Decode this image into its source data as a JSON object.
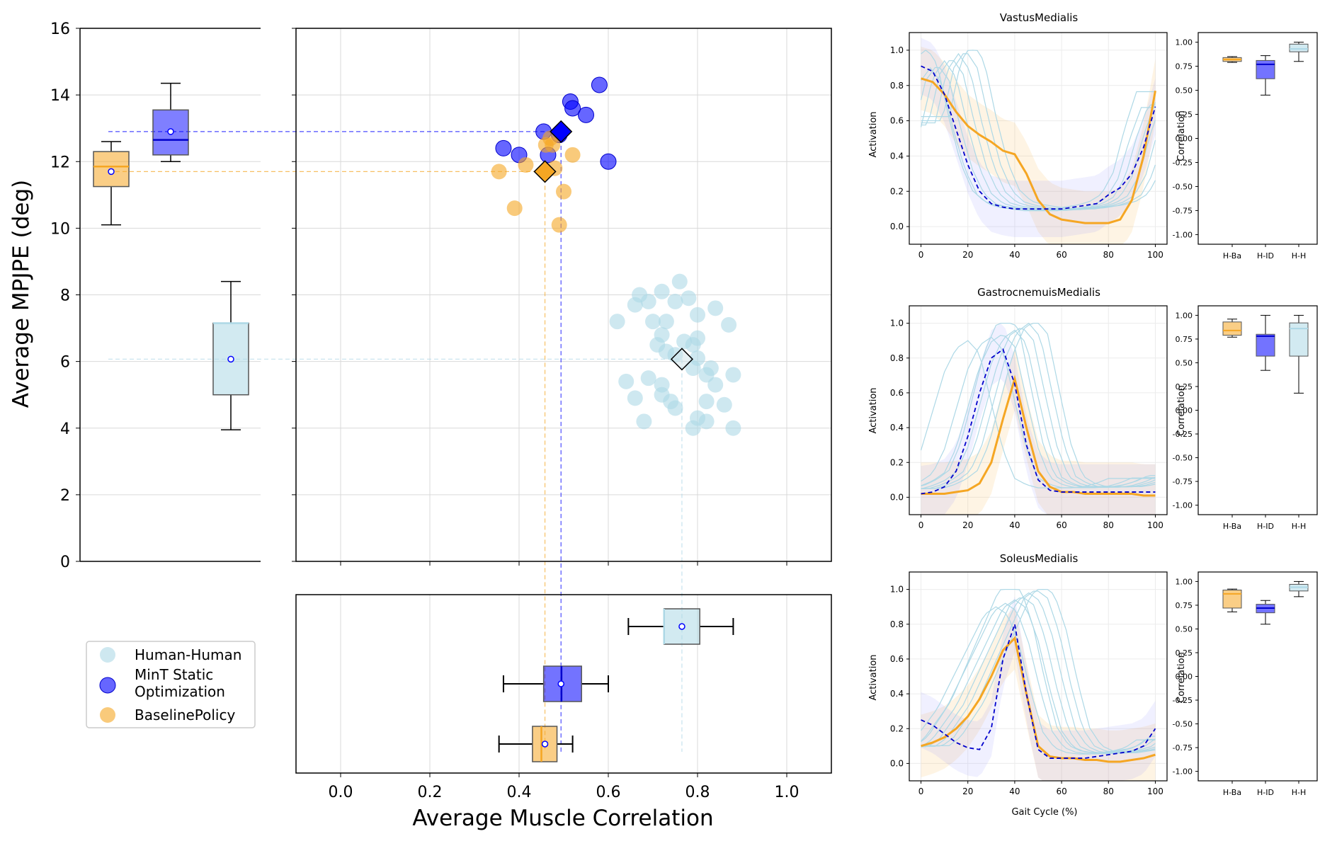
{
  "colors": {
    "human": "#add8e6",
    "mint": "#0000ff",
    "baseline": "#f5a623",
    "grid": "#d9d9d9"
  },
  "legend": {
    "items": [
      {
        "label": "Human-Human",
        "key": "human"
      },
      {
        "label": "MinT Static",
        "label2": "Optimization",
        "key": "mint"
      },
      {
        "label": "BaselinePolicy",
        "key": "baseline"
      }
    ]
  },
  "chart_data": [
    {
      "id": "main-scatter",
      "type": "scatter",
      "title": "",
      "xlabel": "Average Muscle Correlation",
      "ylabel": "Average MPJPE (deg)",
      "xlim": [
        -0.1,
        1.1
      ],
      "ylim": [
        0,
        16
      ],
      "xticks": [
        "0.0",
        "0.2",
        "0.4",
        "0.6",
        "0.8",
        "1.0"
      ],
      "yticks": [
        "0",
        "2",
        "4",
        "6",
        "8",
        "10",
        "12",
        "14",
        "16"
      ],
      "series": [
        {
          "name": "Human-Human",
          "key": "human",
          "mean": [
            0.765,
            6.07
          ],
          "points": [
            [
              0.76,
              8.4
            ],
            [
              0.72,
              8.1
            ],
            [
              0.67,
              8.0
            ],
            [
              0.69,
              7.8
            ],
            [
              0.66,
              7.7
            ],
            [
              0.75,
              7.8
            ],
            [
              0.78,
              7.9
            ],
            [
              0.8,
              7.4
            ],
            [
              0.84,
              7.6
            ],
            [
              0.7,
              7.2
            ],
            [
              0.62,
              7.2
            ],
            [
              0.73,
              7.2
            ],
            [
              0.87,
              7.1
            ],
            [
              0.72,
              6.8
            ],
            [
              0.71,
              6.5
            ],
            [
              0.73,
              6.3
            ],
            [
              0.77,
              6.6
            ],
            [
              0.79,
              6.5
            ],
            [
              0.8,
              6.7
            ],
            [
              0.75,
              6.2
            ],
            [
              0.8,
              6.1
            ],
            [
              0.79,
              5.8
            ],
            [
              0.83,
              5.8
            ],
            [
              0.82,
              5.6
            ],
            [
              0.88,
              5.6
            ],
            [
              0.64,
              5.4
            ],
            [
              0.72,
              5.3
            ],
            [
              0.84,
              5.3
            ],
            [
              0.69,
              5.5
            ],
            [
              0.72,
              5.0
            ],
            [
              0.74,
              4.8
            ],
            [
              0.66,
              4.9
            ],
            [
              0.75,
              4.6
            ],
            [
              0.82,
              4.8
            ],
            [
              0.86,
              4.7
            ],
            [
              0.68,
              4.2
            ],
            [
              0.8,
              4.3
            ],
            [
              0.82,
              4.2
            ],
            [
              0.79,
              4.0
            ],
            [
              0.88,
              4.0
            ]
          ]
        },
        {
          "name": "MinT Static Optimization",
          "key": "mint",
          "mean": [
            0.494,
            12.9
          ],
          "points": [
            [
              0.365,
              12.4
            ],
            [
              0.4,
              12.2
            ],
            [
              0.455,
              12.9
            ],
            [
              0.465,
              12.2
            ],
            [
              0.49,
              12.8
            ],
            [
              0.515,
              13.8
            ],
            [
              0.52,
              13.6
            ],
            [
              0.55,
              13.4
            ],
            [
              0.58,
              14.3
            ],
            [
              0.6,
              12.0
            ]
          ]
        },
        {
          "name": "BaselinePolicy",
          "key": "baseline",
          "mean": [
            0.458,
            11.7
          ],
          "points": [
            [
              0.355,
              11.7
            ],
            [
              0.39,
              10.6
            ],
            [
              0.415,
              11.9
            ],
            [
              0.46,
              12.5
            ],
            [
              0.47,
              12.7
            ],
            [
              0.475,
              12.5
            ],
            [
              0.49,
              10.1
            ],
            [
              0.5,
              11.1
            ],
            [
              0.52,
              12.2
            ],
            [
              0.48,
              11.8
            ]
          ]
        }
      ]
    },
    {
      "id": "mpjpe-boxplot",
      "type": "box",
      "ylim": [
        0,
        16
      ],
      "boxes": [
        {
          "key": "baseline",
          "min": 10.1,
          "q1": 11.25,
          "median": 11.85,
          "q3": 12.3,
          "max": 12.6,
          "mean": 11.7
        },
        {
          "key": "mint",
          "min": 12.0,
          "q1": 12.2,
          "median": 12.65,
          "q3": 13.55,
          "max": 14.35,
          "mean": 12.9
        },
        {
          "key": "human",
          "min": 3.95,
          "q1": 5.0,
          "median": 7.15,
          "q3": 7.15,
          "max": 8.4,
          "mean": 6.07
        }
      ]
    },
    {
      "id": "correlation-boxplot",
      "type": "box",
      "xlim": [
        -0.1,
        1.1
      ],
      "boxes": [
        {
          "key": "human",
          "min": 0.645,
          "q1": 0.725,
          "median": 0.725,
          "q3": 0.805,
          "max": 0.88,
          "mean": 0.765
        },
        {
          "key": "mint",
          "min": 0.365,
          "q1": 0.455,
          "median": 0.495,
          "q3": 0.54,
          "max": 0.6,
          "mean": 0.494
        },
        {
          "key": "baseline",
          "min": 0.355,
          "q1": 0.43,
          "median": 0.45,
          "q3": 0.485,
          "max": 0.52,
          "mean": 0.458
        }
      ]
    },
    {
      "id": "vastus",
      "type": "line",
      "title": "VastusMedialis",
      "xlabel": "",
      "ylabel": "Activation",
      "xlim": [
        -5,
        105
      ],
      "ylim": [
        -0.1,
        1.1
      ],
      "xticks": [
        "0",
        "20",
        "40",
        "60",
        "80",
        "100"
      ],
      "yticks": [
        "0.0",
        "0.2",
        "0.4",
        "0.6",
        "0.8",
        "1.0"
      ],
      "x": [
        0,
        5,
        10,
        15,
        20,
        25,
        30,
        35,
        40,
        45,
        50,
        55,
        60,
        65,
        70,
        75,
        80,
        85,
        90,
        95,
        100
      ],
      "baseline": [
        0.84,
        0.82,
        0.75,
        0.65,
        0.57,
        0.52,
        0.48,
        0.43,
        0.41,
        0.3,
        0.15,
        0.07,
        0.04,
        0.03,
        0.02,
        0.02,
        0.02,
        0.04,
        0.15,
        0.4,
        0.77
      ],
      "mint": [
        0.91,
        0.88,
        0.75,
        0.55,
        0.35,
        0.2,
        0.13,
        0.11,
        0.1,
        0.1,
        0.1,
        0.1,
        0.1,
        0.11,
        0.12,
        0.13,
        0.18,
        0.22,
        0.3,
        0.45,
        0.68
      ],
      "human_mean": [
        0.6,
        0.9,
        1.0,
        0.9,
        0.6,
        0.35,
        0.2,
        0.14,
        0.12,
        0.11,
        0.1,
        0.1,
        0.1,
        0.1,
        0.11,
        0.12,
        0.14,
        0.18,
        0.3,
        0.55,
        0.75
      ],
      "human_shift": [
        -6,
        -3,
        0,
        3,
        6,
        9,
        -8,
        12
      ]
    },
    {
      "id": "gastroc",
      "type": "line",
      "title": "GastrocnemuisMedialis",
      "xlabel": "",
      "ylabel": "Activation",
      "xlim": [
        -5,
        105
      ],
      "ylim": [
        -0.1,
        1.1
      ],
      "xticks": [
        "0",
        "20",
        "40",
        "60",
        "80",
        "100"
      ],
      "yticks": [
        "0.0",
        "0.2",
        "0.4",
        "0.6",
        "0.8",
        "1.0"
      ],
      "x": [
        0,
        5,
        10,
        15,
        20,
        25,
        30,
        35,
        40,
        45,
        50,
        55,
        60,
        65,
        70,
        75,
        80,
        85,
        90,
        95,
        100
      ],
      "baseline": [
        0.02,
        0.02,
        0.02,
        0.03,
        0.04,
        0.08,
        0.2,
        0.45,
        0.68,
        0.4,
        0.15,
        0.06,
        0.03,
        0.03,
        0.02,
        0.02,
        0.02,
        0.02,
        0.02,
        0.01,
        0.01
      ],
      "mint": [
        0.02,
        0.03,
        0.06,
        0.15,
        0.35,
        0.6,
        0.8,
        0.85,
        0.65,
        0.3,
        0.1,
        0.04,
        0.03,
        0.03,
        0.03,
        0.03,
        0.03,
        0.03,
        0.03,
        0.03,
        0.03
      ],
      "human_mean": [
        0.05,
        0.07,
        0.1,
        0.15,
        0.3,
        0.55,
        0.8,
        0.95,
        1.0,
        0.92,
        0.6,
        0.3,
        0.12,
        0.08,
        0.06,
        0.06,
        0.06,
        0.06,
        0.07,
        0.09,
        0.12
      ],
      "human_shift": [
        -20,
        -10,
        -5,
        0,
        3,
        6,
        9,
        -3
      ]
    },
    {
      "id": "soleus",
      "type": "line",
      "title": "SoleusMedialis",
      "xlabel": "Gait Cycle (%)",
      "ylabel": "Activation",
      "xlim": [
        -5,
        105
      ],
      "ylim": [
        -0.1,
        1.1
      ],
      "xticks": [
        "0",
        "20",
        "40",
        "60",
        "80",
        "100"
      ],
      "yticks": [
        "0.0",
        "0.2",
        "0.4",
        "0.6",
        "0.8",
        "1.0"
      ],
      "x": [
        0,
        5,
        10,
        15,
        20,
        25,
        30,
        35,
        40,
        45,
        50,
        55,
        60,
        65,
        70,
        75,
        80,
        85,
        90,
        95,
        100
      ],
      "baseline": [
        0.1,
        0.12,
        0.15,
        0.2,
        0.27,
        0.37,
        0.5,
        0.65,
        0.72,
        0.4,
        0.1,
        0.04,
        0.03,
        0.03,
        0.02,
        0.02,
        0.01,
        0.01,
        0.02,
        0.03,
        0.05
      ],
      "mint": [
        0.25,
        0.22,
        0.17,
        0.12,
        0.09,
        0.08,
        0.2,
        0.6,
        0.8,
        0.4,
        0.08,
        0.03,
        0.03,
        0.03,
        0.03,
        0.04,
        0.05,
        0.06,
        0.07,
        0.1,
        0.2
      ],
      "human_mean": [
        0.1,
        0.15,
        0.25,
        0.35,
        0.5,
        0.65,
        0.8,
        0.95,
        1.0,
        0.95,
        0.75,
        0.45,
        0.2,
        0.1,
        0.07,
        0.06,
        0.06,
        0.07,
        0.08,
        0.1,
        0.15
      ],
      "human_shift": [
        -8,
        -4,
        0,
        3,
        6,
        9,
        12,
        -2
      ]
    },
    {
      "id": "vastus-box",
      "type": "box",
      "ylabel": "Correlation",
      "ylim": [
        -1.1,
        1.1
      ],
      "yticks": [
        "-1.00",
        "-0.75",
        "-0.50",
        "-0.25",
        "0.00",
        "0.25",
        "0.50",
        "0.75",
        "1.00"
      ],
      "categories": [
        "H-Ba",
        "H-ID",
        "H-H"
      ],
      "boxes": [
        {
          "key": "baseline",
          "min": 0.79,
          "q1": 0.8,
          "median": 0.82,
          "q3": 0.84,
          "max": 0.85
        },
        {
          "key": "mint",
          "min": 0.45,
          "q1": 0.62,
          "median": 0.77,
          "q3": 0.81,
          "max": 0.86
        },
        {
          "key": "human",
          "min": 0.8,
          "q1": 0.9,
          "median": 0.93,
          "q3": 0.98,
          "max": 1.0
        }
      ]
    },
    {
      "id": "gastroc-box",
      "type": "box",
      "ylabel": "Correlation",
      "ylim": [
        -1.1,
        1.1
      ],
      "yticks": [
        "-1.00",
        "-0.75",
        "-0.50",
        "-0.25",
        "0.00",
        "0.25",
        "0.50",
        "0.75",
        "1.00"
      ],
      "categories": [
        "H-Ba",
        "H-ID",
        "H-H"
      ],
      "boxes": [
        {
          "key": "baseline",
          "min": 0.77,
          "q1": 0.79,
          "median": 0.84,
          "q3": 0.93,
          "max": 0.96
        },
        {
          "key": "mint",
          "min": 0.42,
          "q1": 0.57,
          "median": 0.78,
          "q3": 0.8,
          "max": 1.0
        },
        {
          "key": "human",
          "min": 0.18,
          "q1": 0.57,
          "median": 0.86,
          "q3": 0.92,
          "max": 1.0
        }
      ]
    },
    {
      "id": "soleus-box",
      "type": "box",
      "ylabel": "Correlation",
      "ylim": [
        -1.1,
        1.1
      ],
      "yticks": [
        "-1.00",
        "-0.75",
        "-0.50",
        "-0.25",
        "0.00",
        "0.25",
        "0.50",
        "0.75",
        "1.00"
      ],
      "categories": [
        "H-Ba",
        "H-ID",
        "H-H"
      ],
      "boxes": [
        {
          "key": "baseline",
          "min": 0.68,
          "q1": 0.72,
          "median": 0.87,
          "q3": 0.91,
          "max": 0.92
        },
        {
          "key": "mint",
          "min": 0.55,
          "q1": 0.67,
          "median": 0.72,
          "q3": 0.76,
          "max": 0.8
        },
        {
          "key": "human",
          "min": 0.84,
          "q1": 0.9,
          "median": 0.94,
          "q3": 0.97,
          "max": 1.0
        }
      ]
    }
  ]
}
